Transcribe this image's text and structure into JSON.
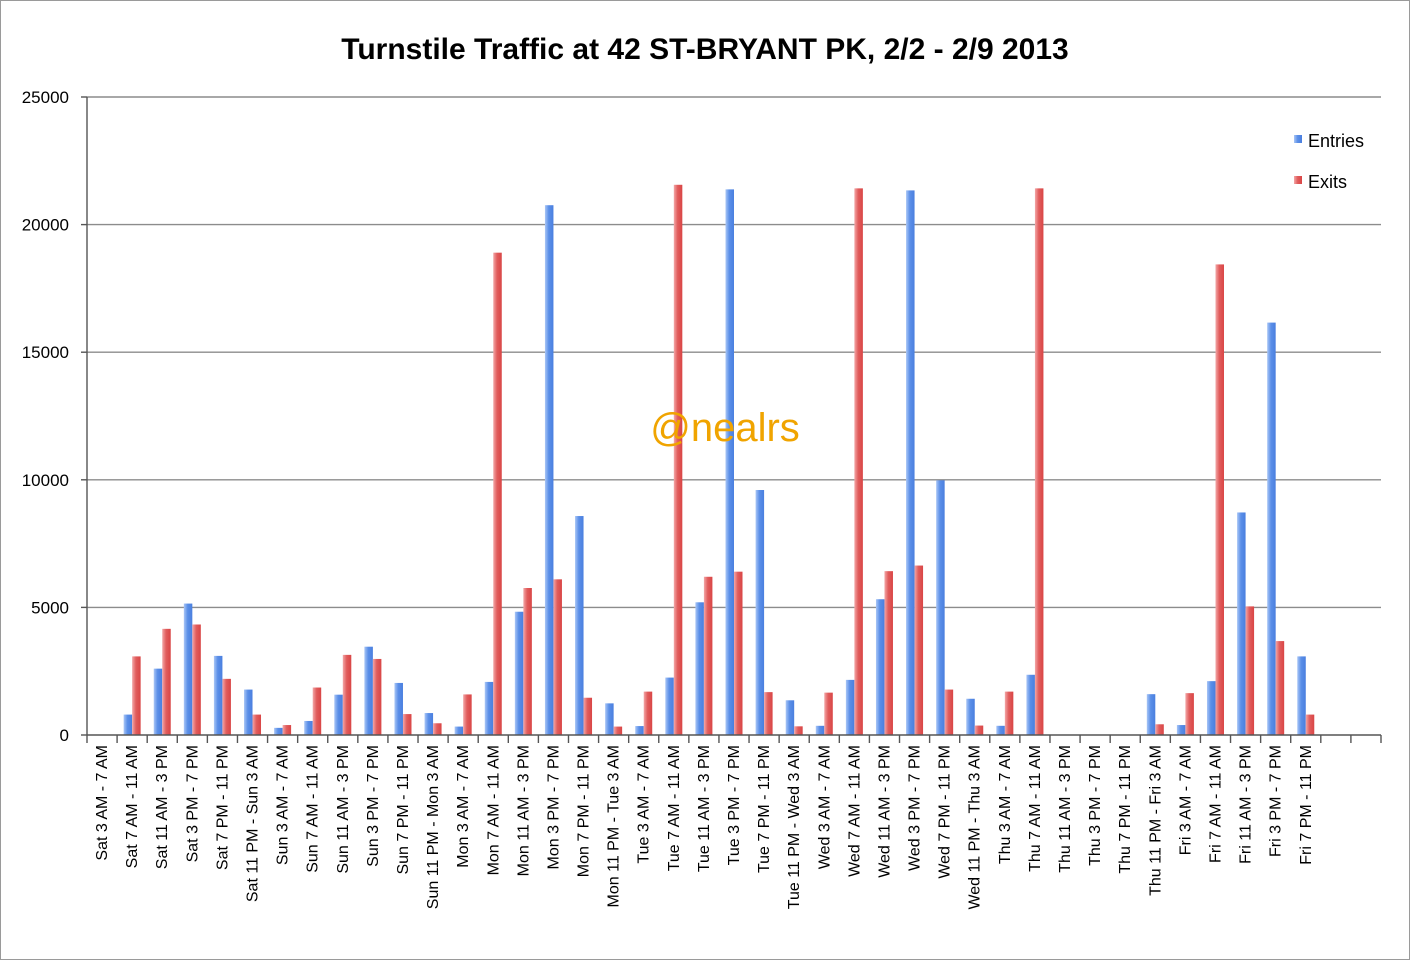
{
  "chart_data": {
    "type": "bar",
    "title": "Turnstile Traffic at 42 ST-BRYANT PK, 2/2 - 2/9 2013",
    "xlabel": "",
    "ylabel": "",
    "ylim": [
      0,
      25000
    ],
    "yticks": [
      "0",
      "5000",
      "10000",
      "15000",
      "20000",
      "25000"
    ],
    "grid": true,
    "legend_position": "top-right",
    "watermark": "@nealrs",
    "categories": [
      "Sat 3 AM - 7 AM",
      "Sat 7 AM - 11 AM",
      "Sat 11 AM - 3 PM",
      "Sat 3 PM - 7 PM",
      "Sat 7 PM - 11 PM",
      "Sat 11 PM - Sun 3 AM",
      "Sun 3 AM - 7 AM",
      "Sun 7 AM - 11 AM",
      "Sun 11 AM - 3 PM",
      "Sun 3 PM - 7 PM",
      "Sun 7 PM - 11 PM",
      "Sun 11 PM - Mon 3 AM",
      "Mon 3 AM - 7 AM",
      "Mon 7 AM - 11 AM",
      "Mon 11 AM - 3 PM",
      "Mon 3 PM - 7 PM",
      "Mon 7 PM - 11 PM",
      "Mon 11 PM - Tue 3 AM",
      "Tue 3 AM - 7 AM",
      "Tue 7 AM - 11 AM",
      "Tue 11 AM - 3 PM",
      "Tue 3 PM - 7 PM",
      "Tue 7 PM - 11 PM",
      "Tue 11 PM - Wed 3 AM",
      "Wed 3 AM - 7 AM",
      "Wed 7 AM - 11 AM",
      "Wed 11 AM - 3 PM",
      "Wed 3 PM - 7 PM",
      "Wed 7 PM - 11 PM",
      "Wed 11 PM - Thu 3 AM",
      "Thu 3 AM - 7 AM",
      "Thu 7 AM - 11 AM",
      "Thu 11 AM - 3 PM",
      "Thu 3 PM - 7 PM",
      "Thu 7 PM - 11 PM",
      "Thu 11 PM - Fri 3 AM",
      "Fri 3 AM - 7 AM",
      "Fri 7 AM - 11 AM",
      "Fri 11 AM - 3 PM",
      "Fri 3 PM - 7 PM",
      "Fri 7 PM - 11 PM",
      "",
      ""
    ],
    "series": [
      {
        "name": "Entries",
        "color": "#5b8fe8",
        "values": [
          0,
          800,
          2600,
          5150,
          3100,
          1780,
          280,
          550,
          1580,
          3460,
          2040,
          860,
          330,
          2080,
          4830,
          20760,
          8580,
          1240,
          350,
          2250,
          5200,
          21380,
          9600,
          1360,
          360,
          2160,
          5320,
          21340,
          9980,
          1420,
          360,
          2360,
          0,
          0,
          0,
          1600,
          390,
          2110,
          8720,
          16160,
          3080,
          0,
          0
        ]
      },
      {
        "name": "Exits",
        "color": "#e15d5d",
        "values": [
          0,
          3080,
          4160,
          4330,
          2200,
          800,
          390,
          1860,
          3140,
          2980,
          820,
          460,
          1590,
          18900,
          5760,
          6100,
          1460,
          330,
          1700,
          21560,
          6200,
          6400,
          1680,
          340,
          1660,
          21420,
          6420,
          6640,
          1780,
          370,
          1700,
          21420,
          0,
          0,
          0,
          420,
          1640,
          18440,
          5040,
          3680,
          800,
          0,
          0
        ]
      }
    ]
  }
}
